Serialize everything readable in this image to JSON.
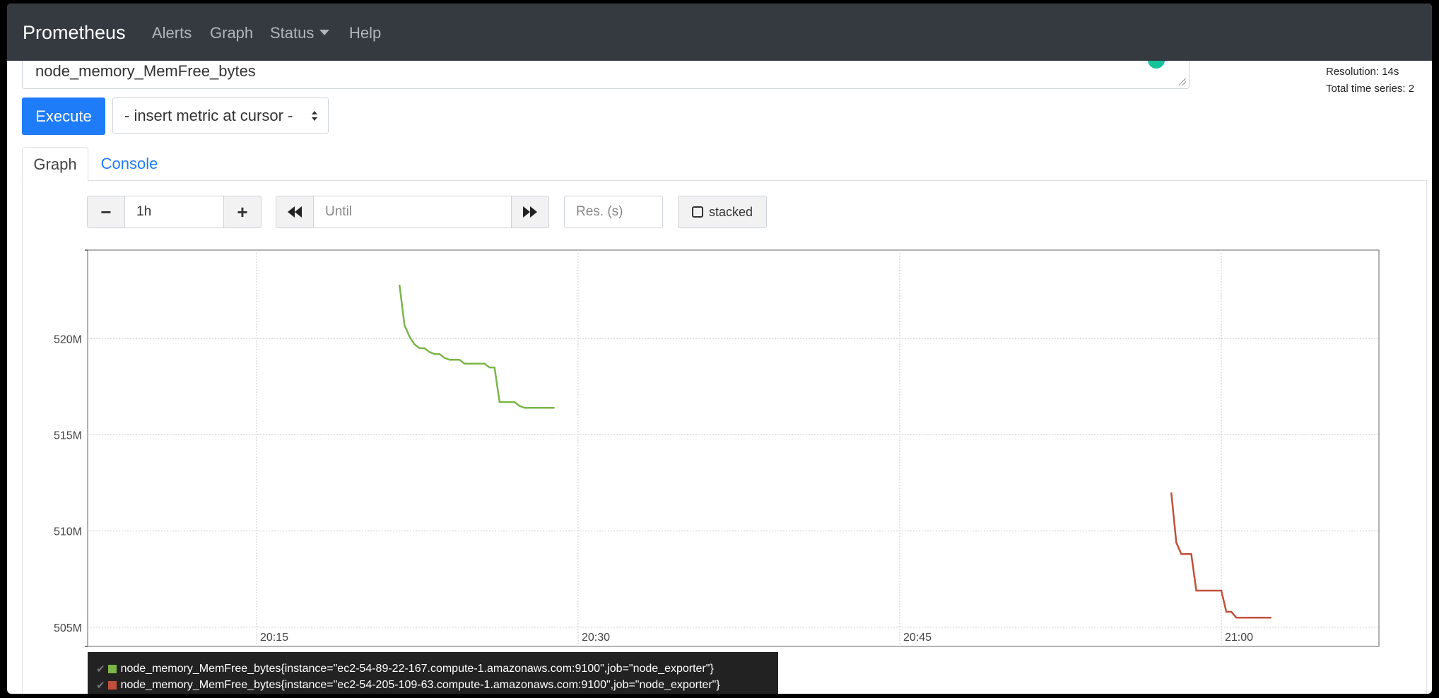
{
  "navbar": {
    "brand": "Prometheus",
    "links": [
      "Alerts",
      "Graph",
      "Status",
      "Help"
    ]
  },
  "query": {
    "expression": "node_memory_MemFree_bytes",
    "execute_label": "Execute",
    "metric_select": "- insert metric at cursor -",
    "resolution_text": "Resolution: 14s",
    "total_series_text": "Total time series: 2"
  },
  "tabs": [
    "Graph",
    "Console"
  ],
  "controls": {
    "minus": "−",
    "range": "1h",
    "plus": "+",
    "until_placeholder": "Until",
    "res_placeholder": "Res. (s)",
    "stacked_label": "stacked"
  },
  "colors": {
    "navbar": "#343a40",
    "execute": "#1f7cf9",
    "series_green": "#7ab648",
    "series_red": "#c0503c"
  },
  "chart_data": {
    "type": "line",
    "title": "",
    "xlabel": "",
    "ylabel": "",
    "x_ticks": [
      "20:15",
      "20:30",
      "20:45",
      "21:00"
    ],
    "y_ticks": [
      "505M",
      "510M",
      "515M",
      "520M"
    ],
    "ylim": [
      504,
      524.6
    ],
    "grid": true,
    "series": [
      {
        "name": "node_memory_MemFree_bytes{instance=\"ec2-54-89-22-167.compute-1.amazonaws.com:9100\",job=\"node_exporter\"}",
        "color": "#7ab648",
        "x": [
          "20:21:40",
          "20:21:54",
          "20:22:08",
          "20:22:22",
          "20:22:36",
          "20:22:50",
          "20:23:04",
          "20:23:18",
          "20:23:32",
          "20:23:46",
          "20:24:00",
          "20:24:14",
          "20:24:28",
          "20:24:42",
          "20:24:56",
          "20:25:10",
          "20:25:24",
          "20:25:38",
          "20:25:52",
          "20:26:06",
          "20:26:20",
          "20:26:34",
          "20:26:48",
          "20:27:02",
          "20:27:16",
          "20:27:30",
          "20:27:44",
          "20:27:58",
          "20:28:12",
          "20:28:26",
          "20:28:40",
          "20:28:54"
        ],
        "values": [
          522.8,
          520.7,
          520.1,
          519.7,
          519.5,
          519.5,
          519.3,
          519.2,
          519.2,
          519.0,
          518.9,
          518.9,
          518.9,
          518.7,
          518.7,
          518.7,
          518.7,
          518.7,
          518.5,
          518.5,
          516.7,
          516.7,
          516.7,
          516.7,
          516.5,
          516.4,
          516.4,
          516.4,
          516.4,
          516.4,
          516.4,
          516.4
        ]
      },
      {
        "name": "node_memory_MemFree_bytes{instance=\"ec2-54-205-109-63.compute-1.amazonaws.com:9100\",job=\"node_exporter\"}",
        "color": "#c0503c",
        "x": [
          "20:57:40",
          "20:57:54",
          "20:58:08",
          "20:58:22",
          "20:58:36",
          "20:58:50",
          "20:59:04",
          "20:59:18",
          "20:59:32",
          "20:59:46",
          "21:00:00",
          "21:00:14",
          "21:00:28",
          "21:00:42",
          "21:00:56",
          "21:01:10",
          "21:01:24",
          "21:01:38",
          "21:01:52",
          "21:02:06",
          "21:02:20"
        ],
        "values": [
          512.0,
          509.4,
          508.8,
          508.8,
          508.8,
          506.9,
          506.9,
          506.9,
          506.9,
          506.9,
          506.9,
          505.8,
          505.8,
          505.5,
          505.5,
          505.5,
          505.5,
          505.5,
          505.5,
          505.5,
          505.5
        ]
      }
    ]
  }
}
